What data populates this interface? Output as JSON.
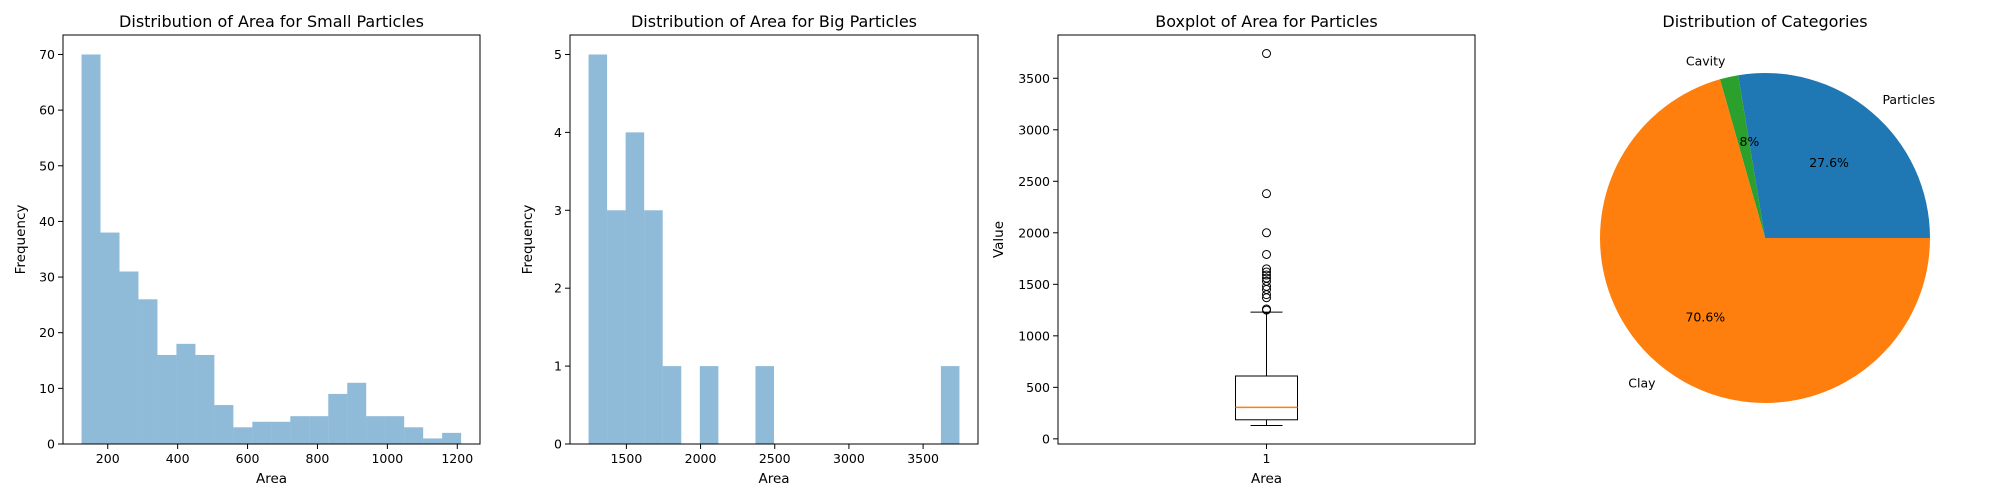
{
  "chart_data": [
    {
      "type": "histogram",
      "title": "Distribution of Area for Small Particles",
      "xlabel": "Area",
      "ylabel": "Frequency",
      "bin_start": 125,
      "bin_width": 54.3,
      "values": [
        70,
        38,
        31,
        26,
        16,
        18,
        16,
        7,
        3,
        4,
        4,
        5,
        5,
        9,
        11,
        5,
        5,
        3,
        1,
        2
      ],
      "color": "#1f77b4",
      "alpha": 0.5,
      "xlim": [
        72,
        1265
      ],
      "ylim": [
        0,
        73.5
      ],
      "xticks": [
        200,
        400,
        600,
        800,
        1000,
        1200
      ],
      "yticks": [
        0,
        10,
        20,
        30,
        40,
        50,
        60,
        70
      ]
    },
    {
      "type": "histogram",
      "title": "Distribution of Area for Big Particles",
      "xlabel": "Area",
      "ylabel": "Frequency",
      "bin_start": 1245,
      "bin_width": 125,
      "values": [
        5,
        3,
        4,
        3,
        1,
        0,
        1,
        0,
        0,
        1,
        0,
        0,
        0,
        0,
        0,
        0,
        0,
        0,
        0,
        1
      ],
      "color": "#1f77b4",
      "alpha": 0.5,
      "xlim": [
        1120,
        3870
      ],
      "ylim": [
        0,
        5.25
      ],
      "xticks": [
        1500,
        2000,
        2500,
        3000,
        3500
      ],
      "yticks": [
        0,
        1,
        2,
        3,
        4,
        5
      ]
    },
    {
      "type": "boxplot",
      "title": "Boxplot of Area for Particles",
      "xlabel": "Area",
      "ylabel": "Value",
      "category": "1",
      "whisker_low": 130,
      "q1": 185,
      "median": 305,
      "q3": 610,
      "whisker_high": 1230,
      "outliers": [
        1250,
        1260,
        1370,
        1400,
        1450,
        1480,
        1530,
        1560,
        1590,
        1620,
        1650,
        1790,
        2000,
        2380,
        3740
      ],
      "median_color": "#ff7f0e",
      "ylim": [
        -50,
        3920
      ],
      "yticks": [
        0,
        500,
        1000,
        1500,
        2000,
        2500,
        3000,
        3500
      ]
    },
    {
      "type": "pie",
      "title": "Distribution of Categories",
      "slices": [
        {
          "label": "Particles",
          "value": 27.6,
          "pct_label": "27.6%",
          "color": "#1f77b4"
        },
        {
          "label": "Cavity",
          "value": 1.8,
          "pct_label": "1.8%",
          "color": "#2ca02c"
        },
        {
          "label": "Clay",
          "value": 70.6,
          "pct_label": "70.6%",
          "color": "#ff7f0e"
        }
      ]
    }
  ]
}
